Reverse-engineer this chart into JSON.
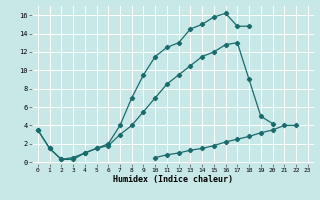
{
  "xlabel": "Humidex (Indice chaleur)",
  "bg_color": "#c8e8e8",
  "line_color": "#1a6b6b",
  "grid_color": "#ffffff",
  "xlim": [
    -0.5,
    23.5
  ],
  "ylim": [
    -0.2,
    17.0
  ],
  "xticks": [
    0,
    1,
    2,
    3,
    4,
    5,
    6,
    7,
    8,
    9,
    10,
    11,
    12,
    13,
    14,
    15,
    16,
    17,
    18,
    19,
    20,
    21,
    22,
    23
  ],
  "yticks": [
    0,
    2,
    4,
    6,
    8,
    10,
    12,
    14,
    16
  ],
  "line1_x": [
    0,
    1,
    2,
    3,
    4,
    5,
    6,
    7,
    8,
    9,
    10,
    11,
    12,
    13,
    14,
    15,
    16,
    17,
    18
  ],
  "line1_y": [
    3.5,
    1.5,
    0.3,
    0.3,
    1.0,
    1.5,
    2.0,
    4.0,
    7.0,
    9.5,
    11.5,
    12.5,
    13.0,
    14.5,
    15.0,
    15.8,
    16.2,
    14.8,
    14.8
  ],
  "line2_x": [
    0,
    1,
    2,
    3,
    4,
    5,
    6,
    7,
    8,
    9,
    10,
    11,
    12,
    13,
    14,
    15,
    16,
    17,
    18,
    19,
    20
  ],
  "line2_y": [
    3.5,
    1.5,
    0.3,
    0.5,
    1.0,
    1.5,
    1.8,
    3.0,
    4.0,
    5.5,
    7.0,
    8.5,
    9.5,
    10.5,
    11.5,
    12.0,
    12.8,
    13.0,
    9.0,
    5.0,
    4.2
  ],
  "line3_x": [
    10,
    11,
    12,
    13,
    14,
    15,
    16,
    17,
    18,
    19,
    20,
    21,
    22
  ],
  "line3_y": [
    0.5,
    0.8,
    1.0,
    1.3,
    1.5,
    1.8,
    2.2,
    2.5,
    2.8,
    3.2,
    3.5,
    4.0,
    4.0
  ]
}
